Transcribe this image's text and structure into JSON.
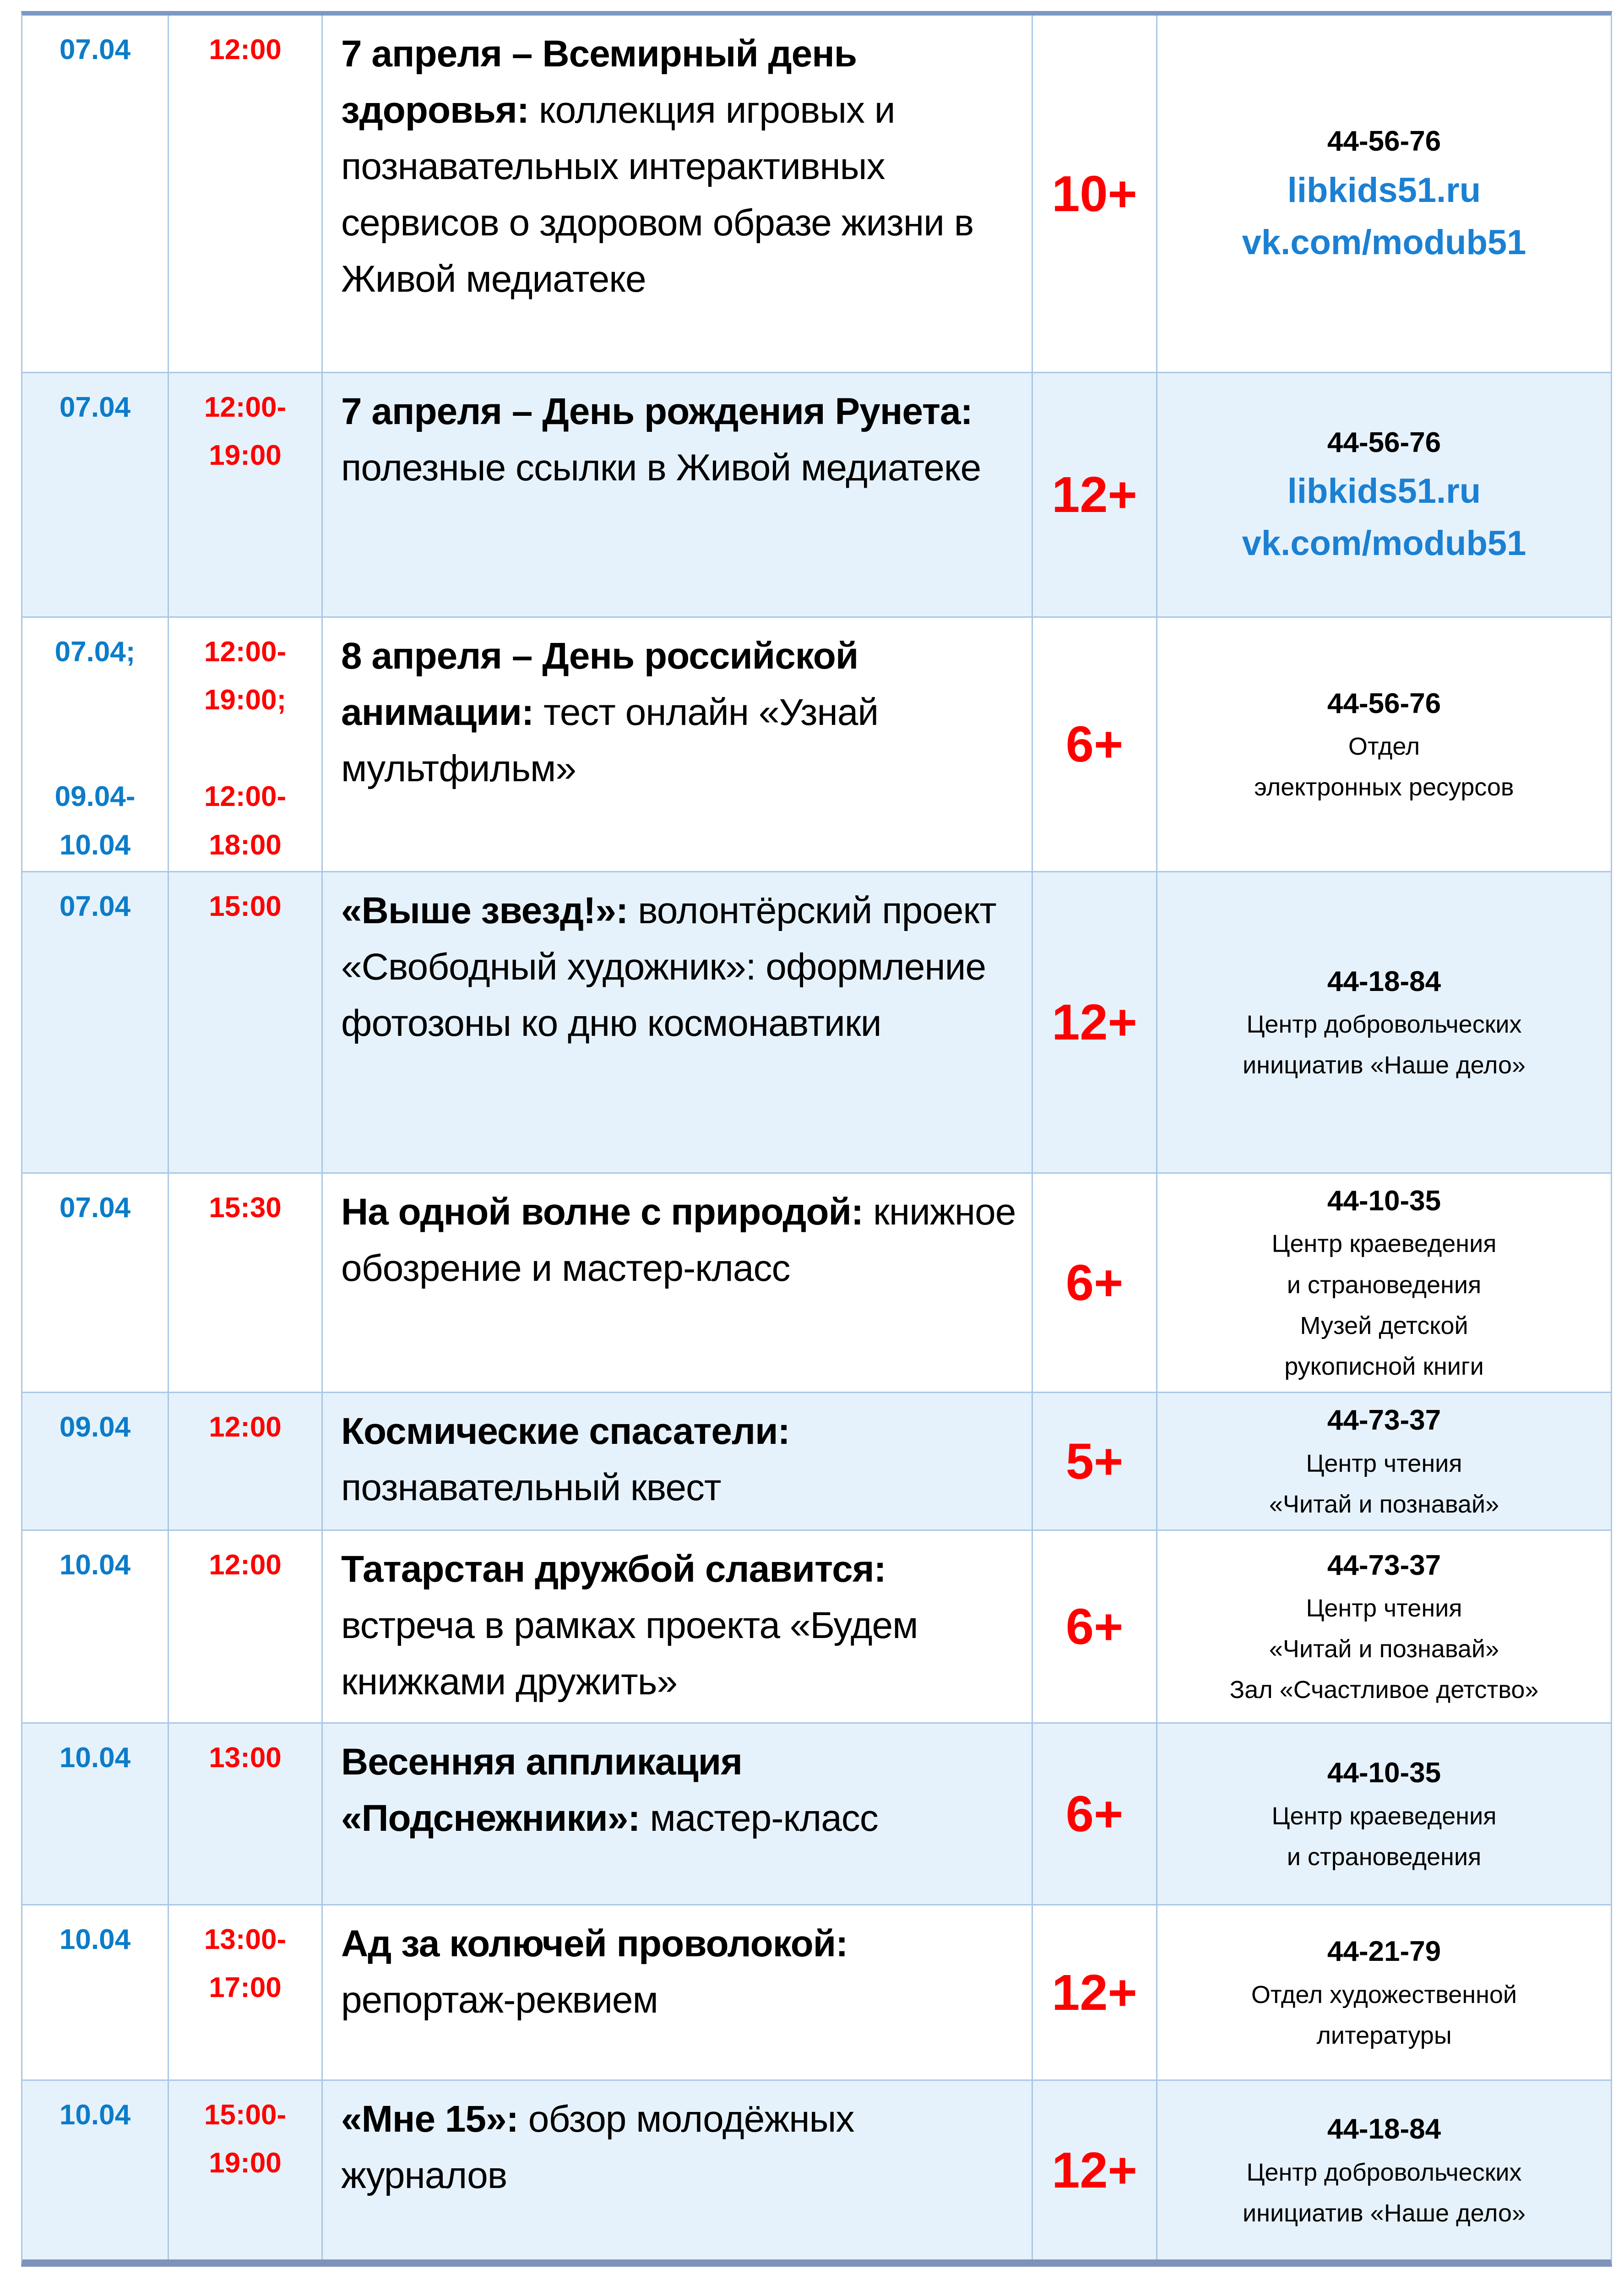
{
  "page": {
    "colors": {
      "date_blue": "#0c7cc9",
      "time_red": "#fe0000",
      "age_red": "#fe0000",
      "link_blue": "#1b80d2",
      "text_black": "#000000",
      "grid_line": "#a9c7e6",
      "frame_top": "#7c99c5",
      "frame_bottom": "#7f93ba",
      "row_alt_bg": "#e6f2fb"
    }
  },
  "schedule": {
    "rows": [
      {
        "date": "07.04",
        "time": "12:00",
        "title": "7 апреля – Всемирный день здоровья:",
        "desc": "коллекция игровых и познавательных интерактивных сервисов о здоровом образе жизни в Живой медиатеке",
        "age": "10+",
        "phone": "44-56-76",
        "links": [
          "libkids51.ru",
          "vk.com/modub51"
        ],
        "dept": []
      },
      {
        "date": "07.04",
        "time": "12:00-\n19:00",
        "title": "7 апреля – День рождения Рунета:",
        "desc": "полезные ссылки в Живой медиатеке",
        "age": "12+",
        "phone": "44-56-76",
        "links": [
          "libkids51.ru",
          "vk.com/modub51"
        ],
        "dept": []
      },
      {
        "date": "07.04;\n\n\n09.04-\n10.04",
        "time": "12:00-\n19:00;\n\n12:00-\n18:00",
        "title": "8 апреля – День российской анимации:",
        "desc": "тест онлайн «Узнай мультфильм»",
        "age": "6+",
        "phone": "44-56-76",
        "links": [],
        "dept": [
          "Отдел",
          "электронных ресурсов"
        ]
      },
      {
        "date": "07.04",
        "time": "15:00",
        "title": "«Выше звезд!»:",
        "desc": "волонтёрский проект «Свободный художник»: оформление фотозоны ко дню космонавтики",
        "age": "12+",
        "phone": "44-18-84",
        "links": [],
        "dept": [
          "Центр добровольческих",
          "инициатив «Наше дело»"
        ]
      },
      {
        "date": "07.04",
        "time": "15:30",
        "title": "На одной волне с природой:",
        "desc": "книжное обозрение и мастер-класс",
        "age": "6+",
        "phone": "44-10-35",
        "links": [],
        "dept": [
          "Центр краеведения",
          "и страноведения",
          "Музей детской",
          "рукописной книги"
        ]
      },
      {
        "date": "09.04",
        "time": "12:00",
        "title": "Космические спасатели:",
        "desc": "познавательный квест",
        "age": "5+",
        "phone": "44-73-37",
        "links": [],
        "dept": [
          "Центр чтения",
          "«Читай и познавай»"
        ]
      },
      {
        "date": "10.04",
        "time": "12:00",
        "title": "Татарстан дружбой славится:",
        "desc": "встреча в рамках проекта «Будем книжками дружить»",
        "age": "6+",
        "phone": "44-73-37",
        "links": [],
        "dept": [
          "Центр чтения",
          "«Читай и познавай»",
          "Зал «Счастливое детство»"
        ]
      },
      {
        "date": "10.04",
        "time": "13:00",
        "title": "Весенняя аппликация «Подснежники»:",
        "desc": "мастер-класс",
        "age": "6+",
        "phone": "44-10-35",
        "links": [],
        "dept": [
          "Центр краеведения",
          "и страноведения"
        ]
      },
      {
        "date": "10.04",
        "time": "13:00-\n17:00",
        "title": "Ад за колючей проволокой:",
        "desc": "репортаж-реквием",
        "age": "12+",
        "phone": "44-21-79",
        "links": [],
        "dept": [
          "Отдел художественной",
          "литературы"
        ]
      },
      {
        "date": "10.04",
        "time": "15:00-\n19:00",
        "title": "«Мне 15»:",
        "desc": "обзор молодёжных журналов",
        "age": "12+",
        "phone": "44-18-84",
        "links": [],
        "dept": [
          "Центр добровольческих",
          "инициатив «Наше дело»"
        ]
      }
    ]
  }
}
